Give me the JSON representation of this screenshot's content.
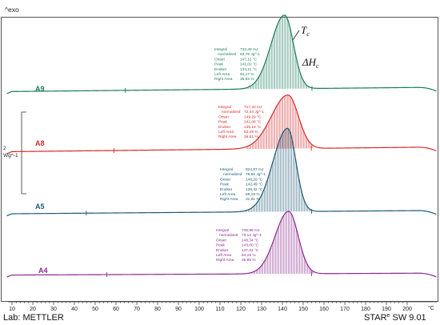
{
  "header": {
    "exo_label": "^exo"
  },
  "footer": {
    "lab": "Lab: METTLER",
    "software_brand": "STAR",
    "software_sup": "e",
    "software_rest": " SW 9.01"
  },
  "colors": {
    "A9": "#1b7a5c",
    "A8": "#d42a2a",
    "A5": "#1e5a74",
    "A4": "#8b2a8e"
  },
  "annotations_math": {
    "tc": "T",
    "tc_sub": "c",
    "dh": "ΔH",
    "dh_sub": "c"
  },
  "chart_data": {
    "type": "line",
    "xlabel": "°C",
    "ylabel": "Wg^-1",
    "y_scale_value": "2",
    "xlim": [
      10,
      202
    ],
    "x_ticks": [
      10,
      20,
      30,
      40,
      50,
      60,
      70,
      80,
      90,
      100,
      110,
      120,
      130,
      140,
      150,
      160,
      170,
      180,
      190,
      200
    ],
    "grid": false,
    "series": [
      {
        "name": "A9",
        "peak_x": 141.02,
        "integration_limits": [
          64.5,
          154.2
        ],
        "annotation": [
          {
            "label": "Integral",
            "value": "732,49 mJ"
          },
          {
            "label": "normalized",
            "value": "63,76 Jg^-1"
          },
          {
            "label": "Onset",
            "value": "147,11 °C"
          },
          {
            "label": "Peak",
            "value": "141,02 °C"
          },
          {
            "label": "Endset",
            "value": "134,11 °C"
          },
          {
            "label": "Left Area",
            "value": "64,17 %"
          },
          {
            "label": "Right Area",
            "value": "35,83 %"
          }
        ]
      },
      {
        "name": "A8",
        "peak_x": 142.68,
        "integration_limits": [
          59.0,
          153.9
        ],
        "annotation": [
          {
            "label": "Integral",
            "value": "717,20 mJ"
          },
          {
            "label": "normalized",
            "value": "72,44 Jg^-1"
          },
          {
            "label": "Onset",
            "value": "149,29 °C"
          },
          {
            "label": "Peak",
            "value": "142,68 °C"
          },
          {
            "label": "Endset",
            "value": "135,19 °C"
          },
          {
            "label": "Left Area",
            "value": "63,49 %"
          },
          {
            "label": "Right Area",
            "value": "36,51 %"
          }
        ]
      },
      {
        "name": "A5",
        "peak_x": 142.49,
        "integration_limits": [
          45.7,
          154.0
        ],
        "annotation": [
          {
            "label": "Integral",
            "value": "824,87 mJ"
          },
          {
            "label": "normalized",
            "value": "78,56 Jg^-1"
          },
          {
            "label": "Onset",
            "value": "148,29 °C"
          },
          {
            "label": "Peak",
            "value": "142,49 °C"
          },
          {
            "label": "Endset",
            "value": "136,42 °C"
          },
          {
            "label": "Left Area",
            "value": "68,19 %"
          },
          {
            "label": "Right Area",
            "value": "31,81 %"
          }
        ]
      },
      {
        "name": "A4",
        "peak_x": 143.0,
        "integration_limits": [
          55.6,
          154.0
        ],
        "annotation": [
          {
            "label": "Integral",
            "value": "745,96 mJ"
          },
          {
            "label": "normalized",
            "value": "73,13 Jg^-1"
          },
          {
            "label": "Onset",
            "value": "148,34 °C"
          },
          {
            "label": "Peak",
            "value": "143,00 °C"
          },
          {
            "label": "Endset",
            "value": "137,02 °C"
          },
          {
            "label": "Left Area",
            "value": "64,15 %"
          },
          {
            "label": "Right Area",
            "value": "35,85 %"
          }
        ]
      }
    ]
  }
}
